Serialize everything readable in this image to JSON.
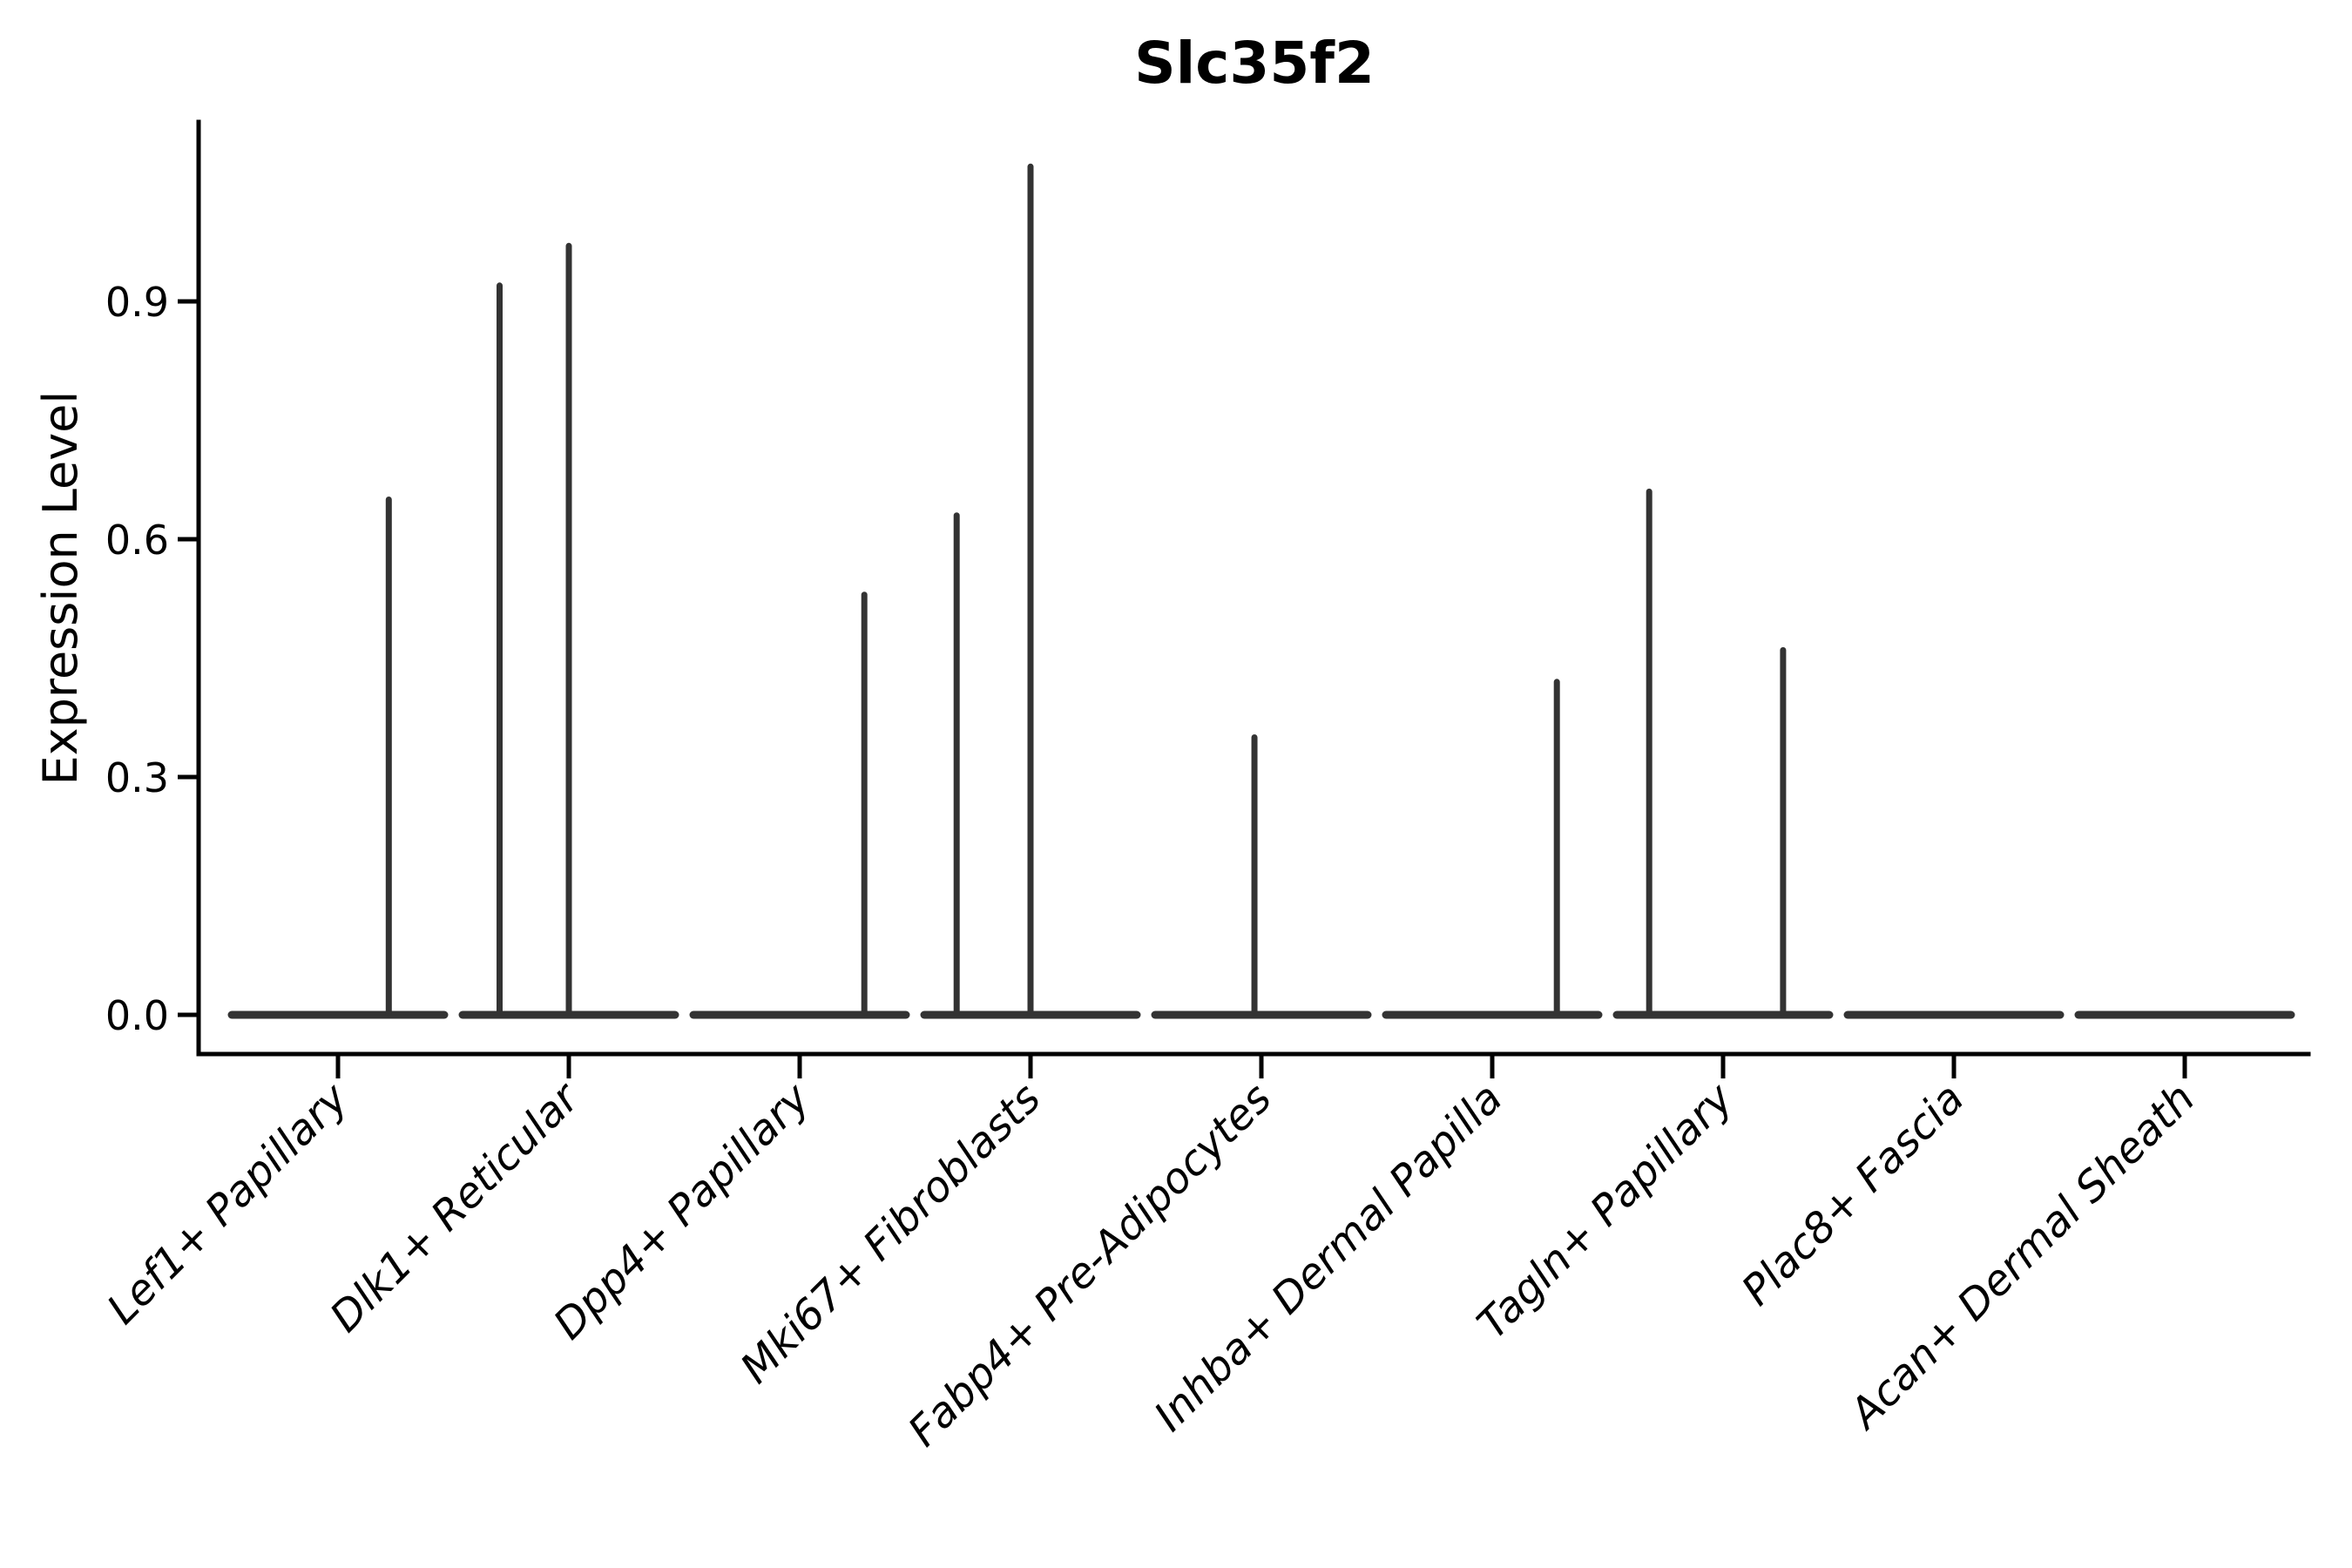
{
  "chart_data": {
    "type": "violin",
    "title": "Slc35f2",
    "ylabel": "Expression Level",
    "xlabel": "",
    "categories": [
      "Lef1+ Papillary",
      "Dlk1+ Reticular",
      "Dpp4+ Papillary",
      "Mki67+ Fibroblasts",
      "Fabp4+ Pre-Adipocytes",
      "Inhba+ Dermal Papilla",
      "Tagln+ Papillary",
      "Plac8+ Fascia",
      "Acan+ Dermal Sheath"
    ],
    "yticks": [
      {
        "value": 0.0,
        "label": "0.0"
      },
      {
        "value": 0.3,
        "label": "0.3"
      },
      {
        "value": 0.6,
        "label": "0.6"
      },
      {
        "value": 0.9,
        "label": "0.9"
      }
    ],
    "ylim": [
      -0.05,
      1.18
    ],
    "grid": false,
    "legend": "none",
    "x_tick_rotation_deg": 45,
    "violins": [
      {
        "category": "Lef1+ Papillary",
        "base_value": 0.0,
        "spikes": [
          {
            "offset": 0.22,
            "value": 0.65
          }
        ]
      },
      {
        "category": "Dlk1+ Reticular",
        "base_value": 0.0,
        "spikes": [
          {
            "offset": -0.3,
            "value": 0.92
          },
          {
            "offset": 0.0,
            "value": 0.97
          }
        ]
      },
      {
        "category": "Dpp4+ Papillary",
        "base_value": 0.0,
        "spikes": [
          {
            "offset": 0.28,
            "value": 0.53
          }
        ]
      },
      {
        "category": "Mki67+ Fibroblasts",
        "base_value": 0.0,
        "spikes": [
          {
            "offset": -0.32,
            "value": 0.63
          },
          {
            "offset": 0.0,
            "value": 1.07
          }
        ]
      },
      {
        "category": "Fabp4+ Pre-Adipocytes",
        "base_value": 0.0,
        "spikes": [
          {
            "offset": -0.03,
            "value": 0.35
          }
        ]
      },
      {
        "category": "Inhba+ Dermal Papilla",
        "base_value": 0.0,
        "spikes": [
          {
            "offset": 0.28,
            "value": 0.42
          }
        ]
      },
      {
        "category": "Tagln+ Papillary",
        "base_value": 0.0,
        "spikes": [
          {
            "offset": -0.32,
            "value": 0.66
          },
          {
            "offset": 0.26,
            "value": 0.46
          }
        ]
      },
      {
        "category": "Plac8+ Fascia",
        "base_value": 0.0,
        "spikes": []
      },
      {
        "category": "Acan+ Dermal Sheath",
        "base_value": 0.0,
        "spikes": []
      }
    ],
    "style": {
      "violin_color": "#333333",
      "axis_color": "#000000",
      "text_color": "#000000",
      "background": "#ffffff"
    }
  }
}
